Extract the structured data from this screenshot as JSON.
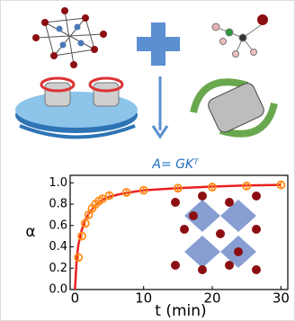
{
  "chart_data": {
    "type": "scatter",
    "annotation": "A= GKᵀ",
    "x_label": "t (min)",
    "y_label": "α",
    "xlim": [
      -0.7,
      31
    ],
    "ylim": [
      0,
      1.07
    ],
    "xticks": [
      0,
      10,
      20,
      30
    ],
    "yticks": [
      {
        "value": 0,
        "label": "0.0"
      },
      {
        "value": 0.2,
        "label": "0.2"
      },
      {
        "value": 0.4,
        "label": "0.4"
      },
      {
        "value": 0.6,
        "label": "0.6"
      },
      {
        "value": 0.8,
        "label": "0.8"
      },
      {
        "value": 1,
        "label": "1.0"
      }
    ],
    "series": [
      {
        "color": "#ff8c1a",
        "marker": "circle",
        "x": [
          0.5,
          1,
          1.5,
          2,
          2.5,
          3,
          3.5,
          4,
          5,
          7.5,
          10,
          15,
          20,
          25,
          30
        ],
        "values": [
          0.3,
          0.5,
          0.62,
          0.7,
          0.76,
          0.8,
          0.83,
          0.85,
          0.88,
          0.91,
          0.93,
          0.95,
          0.96,
          0.97,
          0.98
        ],
        "errors": [
          0.03,
          0.03,
          0.03,
          0.03,
          0.03,
          0.03,
          0.03,
          0.03,
          0.03,
          0.03,
          0.03,
          0.03,
          0.03,
          0.03,
          0.03
        ]
      },
      {
        "color": "#e8201e",
        "marker": "line",
        "x": [
          0,
          0.25,
          0.5,
          1,
          1.5,
          2,
          3,
          4,
          5,
          7,
          10,
          15,
          20,
          25,
          30
        ],
        "values": [
          0,
          0.28,
          0.42,
          0.56,
          0.65,
          0.71,
          0.79,
          0.84,
          0.87,
          0.9,
          0.93,
          0.95,
          0.965,
          0.975,
          0.98
        ]
      }
    ]
  }
}
